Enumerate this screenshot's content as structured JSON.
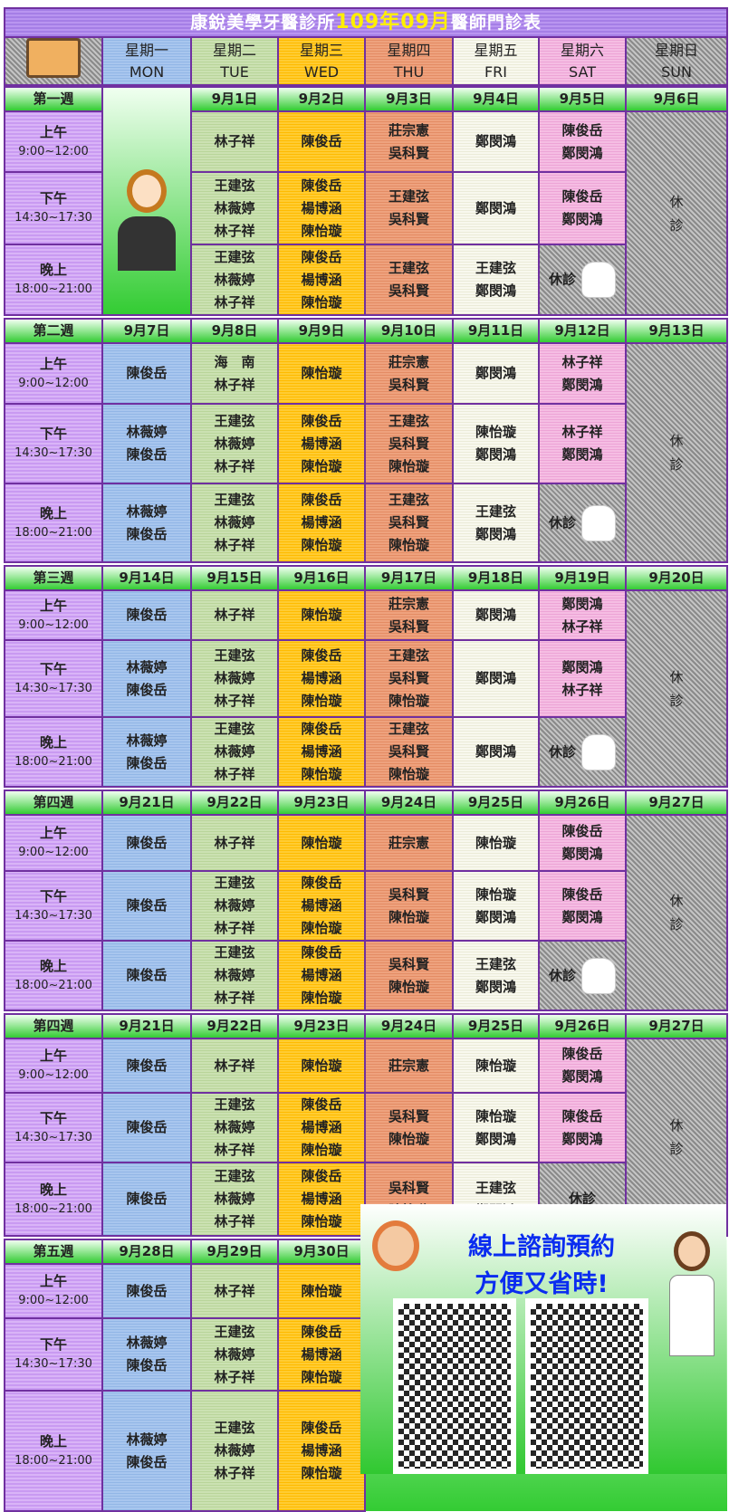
{
  "title": {
    "clinic": "康銳美學牙醫診所",
    "year_month": "109年09月",
    "suffix": "醫師門診表"
  },
  "days": [
    {
      "zh": "星期一",
      "en": "MON"
    },
    {
      "zh": "星期二",
      "en": "TUE"
    },
    {
      "zh": "星期三",
      "en": "WED"
    },
    {
      "zh": "星期四",
      "en": "THU"
    },
    {
      "zh": "星期五",
      "en": "FRI"
    },
    {
      "zh": "星期六",
      "en": "SAT"
    },
    {
      "zh": "星期日",
      "en": "SUN"
    }
  ],
  "slots": [
    {
      "name": "上午",
      "time": "9:00~12:00"
    },
    {
      "name": "下午",
      "time": "14:30~17:30"
    },
    {
      "name": "晚上",
      "time": "18:00~21:00"
    }
  ],
  "closed_label": "休診",
  "sunday_closed": "休\n診",
  "colors": {
    "border": "#7030a0",
    "title_accent": "#ffef00",
    "promo_text": "#0a2cf0"
  },
  "weeks": [
    {
      "label": "第一週",
      "dates": [
        "",
        "9月1日",
        "9月2日",
        "9月3日",
        "9月4日",
        "9月5日",
        "9月6日"
      ],
      "mon_image": true,
      "rows": [
        [
          null,
          "林子祥",
          "陳俊岳",
          "莊宗憲\n吳科賢",
          "鄭閔鴻",
          "陳俊岳\n鄭閔鴻"
        ],
        [
          null,
          "王建弦\n林薇婷\n林子祥",
          "陳俊岳\n楊博涵\n陳怡璇",
          "王建弦\n吳科賢",
          "鄭閔鴻",
          "陳俊岳\n鄭閔鴻"
        ],
        [
          null,
          "王建弦\n林薇婷\n林子祥",
          "陳俊岳\n楊博涵\n陳怡璇",
          "王建弦\n吳科賢",
          "王建弦\n鄭閔鴻",
          "休診"
        ]
      ]
    },
    {
      "label": "第二週",
      "dates": [
        "9月7日",
        "9月8日",
        "9月9日",
        "9月10日",
        "9月11日",
        "9月12日",
        "9月13日"
      ],
      "rows": [
        [
          "陳俊岳",
          "海　南\n林子祥",
          "陳怡璇",
          "莊宗憲\n吳科賢",
          "鄭閔鴻",
          "林子祥\n鄭閔鴻"
        ],
        [
          "林薇婷\n陳俊岳",
          "王建弦\n林薇婷\n林子祥",
          "陳俊岳\n楊博涵\n陳怡璇",
          "王建弦\n吳科賢\n陳怡璇",
          "陳怡璇\n鄭閔鴻",
          "林子祥\n鄭閔鴻"
        ],
        [
          "林薇婷\n陳俊岳",
          "王建弦\n林薇婷\n林子祥",
          "陳俊岳\n楊博涵\n陳怡璇",
          "王建弦\n吳科賢\n陳怡璇",
          "王建弦\n鄭閔鴻",
          "休診"
        ]
      ]
    },
    {
      "label": "第三週",
      "dates": [
        "9月14日",
        "9月15日",
        "9月16日",
        "9月17日",
        "9月18日",
        "9月19日",
        "9月20日"
      ],
      "rows": [
        [
          "陳俊岳",
          "林子祥",
          "陳怡璇",
          "莊宗憲\n吳科賢",
          "鄭閔鴻",
          "鄭閔鴻\n林子祥"
        ],
        [
          "林薇婷\n陳俊岳",
          "王建弦\n林薇婷\n林子祥",
          "陳俊岳\n楊博涵\n陳怡璇",
          "王建弦\n吳科賢\n陳怡璇",
          "鄭閔鴻",
          "鄭閔鴻\n林子祥"
        ],
        [
          "林薇婷\n陳俊岳",
          "王建弦\n林薇婷\n林子祥",
          "陳俊岳\n楊博涵\n陳怡璇",
          "王建弦\n吳科賢\n陳怡璇",
          "鄭閔鴻",
          "休診"
        ]
      ]
    },
    {
      "label": "第四週",
      "dates": [
        "9月21日",
        "9月22日",
        "9月23日",
        "9月24日",
        "9月25日",
        "9月26日",
        "9月27日"
      ],
      "rows": [
        [
          "陳俊岳",
          "林子祥",
          "陳怡璇",
          "莊宗憲",
          "陳怡璇",
          "陳俊岳\n鄭閔鴻"
        ],
        [
          "陳俊岳",
          "王建弦\n林薇婷\n林子祥",
          "陳俊岳\n楊博涵\n陳怡璇",
          "吳科賢\n陳怡璇",
          "陳怡璇\n鄭閔鴻",
          "陳俊岳\n鄭閔鴻"
        ],
        [
          "陳俊岳",
          "王建弦\n林薇婷\n林子祥",
          "陳俊岳\n楊博涵\n陳怡璇",
          "吳科賢\n陳怡璇",
          "王建弦\n鄭閔鴻",
          "休診"
        ]
      ]
    },
    {
      "label": "第四週",
      "dates": [
        "9月21日",
        "9月22日",
        "9月23日",
        "9月24日",
        "9月25日",
        "9月26日",
        "9月27日"
      ],
      "rows": [
        [
          "陳俊岳",
          "林子祥",
          "陳怡璇",
          "莊宗憲",
          "陳怡璇",
          "陳俊岳\n鄭閔鴻"
        ],
        [
          "陳俊岳",
          "王建弦\n林薇婷\n林子祥",
          "陳俊岳\n楊博涵\n陳怡璇",
          "吳科賢\n陳怡璇",
          "陳怡璇\n鄭閔鴻",
          "陳俊岳\n鄭閔鴻"
        ],
        [
          "陳俊岳",
          "王建弦\n林薇婷\n林子祥",
          "陳俊岳\n楊博涵\n陳怡璇",
          "吳科賢\n陳怡璇",
          "王建弦\n鄭閔鴻",
          "休診"
        ]
      ]
    },
    {
      "label": "第五週",
      "dates": [
        "9月28日",
        "9月29日",
        "9月30日"
      ],
      "rows": [
        [
          "陳俊岳",
          "林子祥",
          "陳怡璇"
        ],
        [
          "林薇婷\n陳俊岳",
          "王建弦\n林薇婷\n林子祥",
          "陳俊岳\n楊博涵\n陳怡璇"
        ],
        [
          "林薇婷\n陳俊岳",
          "王建弦\n林薇婷\n林子祥",
          "陳俊岳\n楊博涵\n陳怡璇"
        ]
      ]
    }
  ],
  "promo": {
    "line1": "線上諮詢預約",
    "line2": "方便又省時!",
    "qr_codes": [
      "clinic-qr-code",
      "line-qr-code"
    ]
  }
}
